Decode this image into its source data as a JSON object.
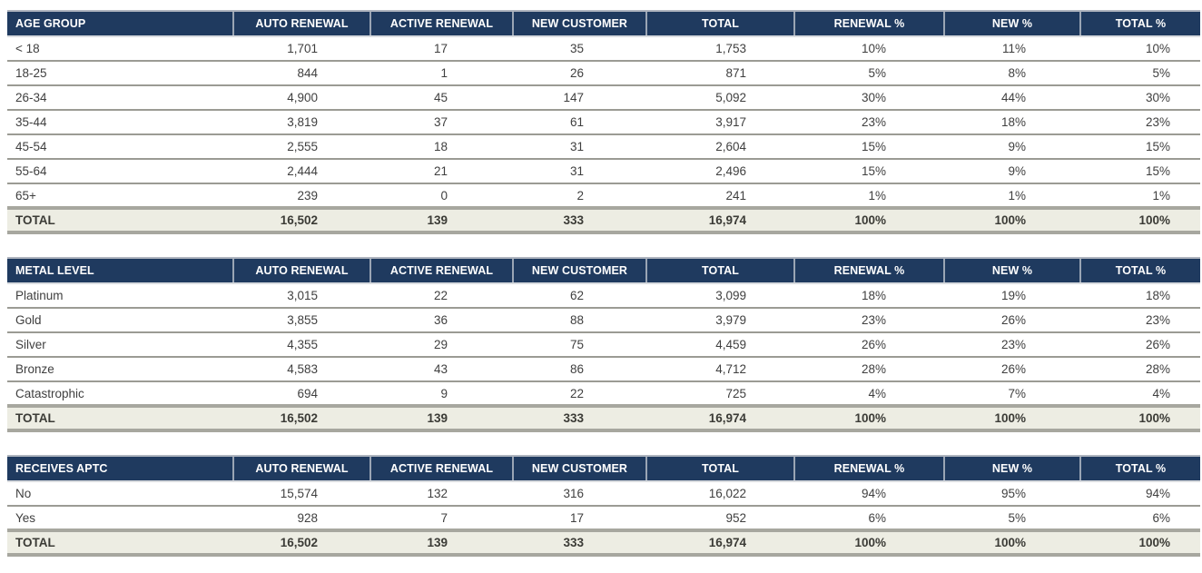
{
  "colors": {
    "header_bg": "#1F3A5F",
    "header_text": "#FFFFFF",
    "header_separator": "#9AA5B4",
    "row_text": "#3F3F3F",
    "row_rule": "#9B9B94",
    "total_bg": "#EDEDE3",
    "total_rule": "#A7A79F"
  },
  "tables": [
    {
      "name": "age-group",
      "header": [
        "AGE GROUP",
        "AUTO RENEWAL",
        "ACTIVE RENEWAL",
        "NEW CUSTOMER",
        "TOTAL",
        "RENEWAL %",
        "NEW %",
        "TOTAL %"
      ],
      "rows": [
        [
          "< 18",
          "1,701",
          "17",
          "35",
          "1,753",
          "10%",
          "11%",
          "10%"
        ],
        [
          "18-25",
          "844",
          "1",
          "26",
          "871",
          "5%",
          "8%",
          "5%"
        ],
        [
          "26-34",
          "4,900",
          "45",
          "147",
          "5,092",
          "30%",
          "44%",
          "30%"
        ],
        [
          "35-44",
          "3,819",
          "37",
          "61",
          "3,917",
          "23%",
          "18%",
          "23%"
        ],
        [
          "45-54",
          "2,555",
          "18",
          "31",
          "2,604",
          "15%",
          "9%",
          "15%"
        ],
        [
          "55-64",
          "2,444",
          "21",
          "31",
          "2,496",
          "15%",
          "9%",
          "15%"
        ],
        [
          "65+",
          "239",
          "0",
          "2",
          "241",
          "1%",
          "1%",
          "1%"
        ]
      ],
      "total": [
        "TOTAL",
        "16,502",
        "139",
        "333",
        "16,974",
        "100%",
        "100%",
        "100%"
      ]
    },
    {
      "name": "metal-level",
      "header": [
        "METAL LEVEL",
        "AUTO RENEWAL",
        "ACTIVE RENEWAL",
        "NEW CUSTOMER",
        "TOTAL",
        "RENEWAL %",
        "NEW %",
        "TOTAL %"
      ],
      "rows": [
        [
          "Platinum",
          "3,015",
          "22",
          "62",
          "3,099",
          "18%",
          "19%",
          "18%"
        ],
        [
          "Gold",
          "3,855",
          "36",
          "88",
          "3,979",
          "23%",
          "26%",
          "23%"
        ],
        [
          "Silver",
          "4,355",
          "29",
          "75",
          "4,459",
          "26%",
          "23%",
          "26%"
        ],
        [
          "Bronze",
          "4,583",
          "43",
          "86",
          "4,712",
          "28%",
          "26%",
          "28%"
        ],
        [
          "Catastrophic",
          "694",
          "9",
          "22",
          "725",
          "4%",
          "7%",
          "4%"
        ]
      ],
      "total": [
        "TOTAL",
        "16,502",
        "139",
        "333",
        "16,974",
        "100%",
        "100%",
        "100%"
      ]
    },
    {
      "name": "receives-aptc",
      "header": [
        "RECEIVES APTC",
        "AUTO RENEWAL",
        "ACTIVE RENEWAL",
        "NEW CUSTOMER",
        "TOTAL",
        "RENEWAL %",
        "NEW %",
        "TOTAL %"
      ],
      "rows": [
        [
          "No",
          "15,574",
          "132",
          "316",
          "16,022",
          "94%",
          "95%",
          "94%"
        ],
        [
          "Yes",
          "928",
          "7",
          "17",
          "952",
          "6%",
          "5%",
          "6%"
        ]
      ],
      "total": [
        "TOTAL",
        "16,502",
        "139",
        "333",
        "16,974",
        "100%",
        "100%",
        "100%"
      ]
    }
  ]
}
